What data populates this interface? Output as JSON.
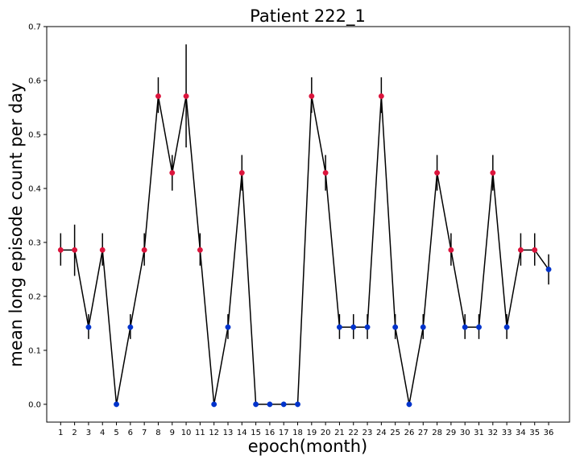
{
  "chart_data": {
    "type": "line",
    "title": "Patient 222_1",
    "xlabel": "epoch(month)",
    "ylabel": "mean long episode count per day",
    "x": [
      1,
      2,
      3,
      4,
      5,
      6,
      7,
      8,
      9,
      10,
      11,
      12,
      13,
      14,
      15,
      16,
      17,
      18,
      19,
      20,
      21,
      22,
      23,
      24,
      25,
      26,
      27,
      28,
      29,
      30,
      31,
      32,
      33,
      34,
      35,
      36
    ],
    "x_tick_labels": [
      "1",
      "2",
      "3",
      "4",
      "5",
      "6",
      "7",
      "8",
      "9",
      "10",
      "11",
      "12",
      "13",
      "14",
      "15",
      "16",
      "17",
      "18",
      "19",
      "20",
      "21",
      "22",
      "23",
      "24",
      "25",
      "26",
      "27",
      "28",
      "29",
      "30",
      "31",
      "32",
      "33",
      "34",
      "35",
      "36"
    ],
    "values": [
      0.286,
      0.286,
      0.143,
      0.286,
      0.0,
      0.143,
      0.286,
      0.571,
      0.429,
      0.571,
      0.286,
      0.0,
      0.143,
      0.429,
      0.0,
      0.0,
      0.0,
      0.0,
      0.571,
      0.429,
      0.143,
      0.143,
      0.143,
      0.571,
      0.143,
      0.0,
      0.143,
      0.429,
      0.286,
      0.143,
      0.143,
      0.429,
      0.143,
      0.286,
      0.286,
      0.25
    ],
    "error_low": [
      0.257,
      0.238,
      0.121,
      0.257,
      0.0,
      0.121,
      0.257,
      0.54,
      0.396,
      0.476,
      0.257,
      0.0,
      0.121,
      0.396,
      0.0,
      0.0,
      0.0,
      0.0,
      0.54,
      0.396,
      0.121,
      0.121,
      0.121,
      0.54,
      0.121,
      0.0,
      0.121,
      0.396,
      0.257,
      0.121,
      0.121,
      0.396,
      0.121,
      0.257,
      0.257,
      0.222
    ],
    "error_high": [
      0.317,
      0.333,
      0.167,
      0.317,
      0.0,
      0.167,
      0.317,
      0.606,
      0.462,
      0.667,
      0.317,
      0.0,
      0.167,
      0.462,
      0.0,
      0.0,
      0.0,
      0.0,
      0.606,
      0.462,
      0.167,
      0.167,
      0.167,
      0.606,
      0.167,
      0.0,
      0.167,
      0.462,
      0.317,
      0.167,
      0.167,
      0.462,
      0.167,
      0.317,
      0.317,
      0.278
    ],
    "ylim": [
      -0.033,
      0.7
    ],
    "y_ticks": [
      0.0,
      0.1,
      0.2,
      0.3,
      0.4,
      0.5,
      0.6,
      0.7
    ],
    "y_tick_labels": [
      "0.0",
      "0.1",
      "0.2",
      "0.3",
      "0.4",
      "0.5",
      "0.6",
      "0.7"
    ],
    "threshold": 0.25,
    "colors": {
      "line": "#000000",
      "above": "#dc143c",
      "below": "#0033cc",
      "errorbar": "#000000"
    },
    "grid": false,
    "legend": "none"
  }
}
